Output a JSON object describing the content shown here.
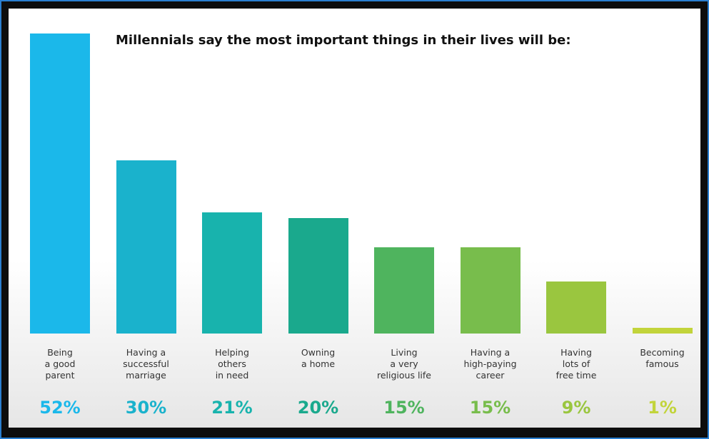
{
  "chart_data": {
    "type": "bar",
    "title": "Millennials say the most important things in their lives will be:",
    "categories": [
      "Being\na good\nparent",
      "Having a\nsuccessful\nmarriage",
      "Helping\nothers\nin need",
      "Owning\na home",
      "Living\na very\nreligious life",
      "Having a\nhigh-paying\ncareer",
      "Having\nlots of\nfree time",
      "Becoming\nfamous"
    ],
    "values": [
      52,
      30,
      21,
      20,
      15,
      15,
      9,
      1
    ],
    "value_labels": [
      "52%",
      "30%",
      "21%",
      "20%",
      "15%",
      "15%",
      "9%",
      "1%"
    ],
    "colors": [
      "#1bb8ea",
      "#1ab2cc",
      "#18b3ad",
      "#1aa98d",
      "#4fb45e",
      "#78bd4c",
      "#9ac63f",
      "#c2d43b"
    ],
    "ylim": [
      0,
      52
    ]
  }
}
